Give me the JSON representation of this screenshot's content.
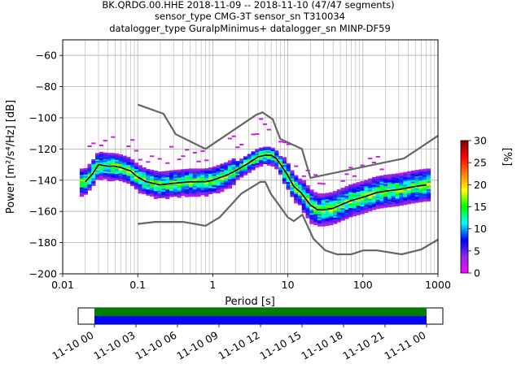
{
  "figure": {
    "title_lines": [
      "BK.QRDG.00.HHE   2018-11-09 -- 2018-11-10  (47/47 segments)",
      "sensor_type CMG-3T sensor_sn T310034",
      "datalogger_type GuralpMinimus+ datalogger_sn MINP-DF59"
    ]
  },
  "chart_data": [
    {
      "type": "heatmap",
      "subtype": "probabilistic-power-spectral-density",
      "xlabel": "Period [s]",
      "ylabel": "Power [m²/s⁴/Hz] [dB]",
      "xscale": "log",
      "xlim": [
        0.01,
        1000
      ],
      "ylim": [
        -200,
        -50
      ],
      "x_ticks": [
        0.01,
        0.1,
        1,
        10,
        100,
        1000
      ],
      "x_tick_labels": [
        "0.01",
        "0.1",
        "1",
        "10",
        "100",
        "1000"
      ],
      "y_ticks": [
        -200,
        -180,
        -160,
        -140,
        -120,
        -100,
        -80,
        -60
      ],
      "y_tick_labels": [
        "−200",
        "−180",
        "−160",
        "−140",
        "−120",
        "−100",
        "−80",
        "−60"
      ],
      "grid": true,
      "colorbar": {
        "label": "[%]",
        "range": [
          0,
          30
        ],
        "ticks": [
          0,
          5,
          10,
          15,
          20,
          25,
          30
        ],
        "tick_labels": [
          "0",
          "5",
          "10",
          "15",
          "20",
          "25",
          "30"
        ],
        "colormap": [
          "#ff00ff",
          "#8a2be2",
          "#0000ff",
          "#00ffff",
          "#00ff00",
          "#ffff00",
          "#ff8000",
          "#ff0000",
          "#800000"
        ]
      },
      "series": [
        {
          "role": "mode",
          "color": "#000000",
          "x": [
            0.02,
            0.025,
            0.03,
            0.04,
            0.05,
            0.06,
            0.08,
            0.1,
            0.13,
            0.2,
            0.3,
            0.5,
            0.8,
            1.0,
            1.5,
            2.0,
            3.0,
            4.0,
            5.0,
            6.0,
            7.0,
            8.0,
            10,
            12,
            15,
            20,
            25,
            30,
            40,
            50,
            70,
            100,
            150,
            200,
            300,
            500,
            700
          ],
          "y": [
            -141,
            -136,
            -130,
            -131,
            -131,
            -132,
            -134,
            -138,
            -141,
            -143,
            -142,
            -141,
            -141,
            -140,
            -137,
            -134,
            -129,
            -125,
            -124,
            -124,
            -126,
            -130,
            -137,
            -144,
            -148,
            -156,
            -159,
            -159,
            -158,
            -156,
            -153,
            -151,
            -148,
            -147,
            -146,
            -144,
            -143
          ]
        },
        {
          "role": "new-high-noise-model",
          "color": "#666666",
          "x": [
            0.1,
            0.22,
            0.32,
            0.8,
            3.8,
            4.6,
            6.3,
            7.9,
            15.4,
            20,
            354,
            1000
          ],
          "y": [
            -91.5,
            -97.4,
            -110.5,
            -120,
            -98,
            -96.5,
            -101,
            -113.5,
            -120,
            -138.5,
            -126,
            -111.5
          ]
        },
        {
          "role": "new-low-noise-model",
          "color": "#666666",
          "x": [
            0.1,
            0.17,
            0.4,
            0.8,
            1.24,
            2.4,
            4.3,
            5.0,
            6.0,
            10,
            12,
            15.6,
            21.9,
            31.6,
            45,
            70,
            101,
            154,
            328,
            600,
            1000
          ],
          "y": [
            -168,
            -166.7,
            -166.7,
            -169.2,
            -163.7,
            -148.6,
            -141.1,
            -141.1,
            -149,
            -163.8,
            -166.2,
            -162.1,
            -177.5,
            -185,
            -187.5,
            -187.5,
            -185,
            -185,
            -187.5,
            -184.4,
            -178
          ]
        }
      ]
    },
    {
      "type": "timeline",
      "x_tick_labels": [
        "11-10 00",
        "11-10 03",
        "11-10 06",
        "11-10 09",
        "11-10 12",
        "11-10 15",
        "11-10 18",
        "11-10 21",
        "11-11 00"
      ],
      "rows": [
        {
          "name": "",
          "color": "#008000",
          "coverage": [
            0,
            1
          ]
        },
        {
          "name": "",
          "color": "#0000ff",
          "coverage": [
            0,
            1
          ]
        }
      ]
    }
  ]
}
